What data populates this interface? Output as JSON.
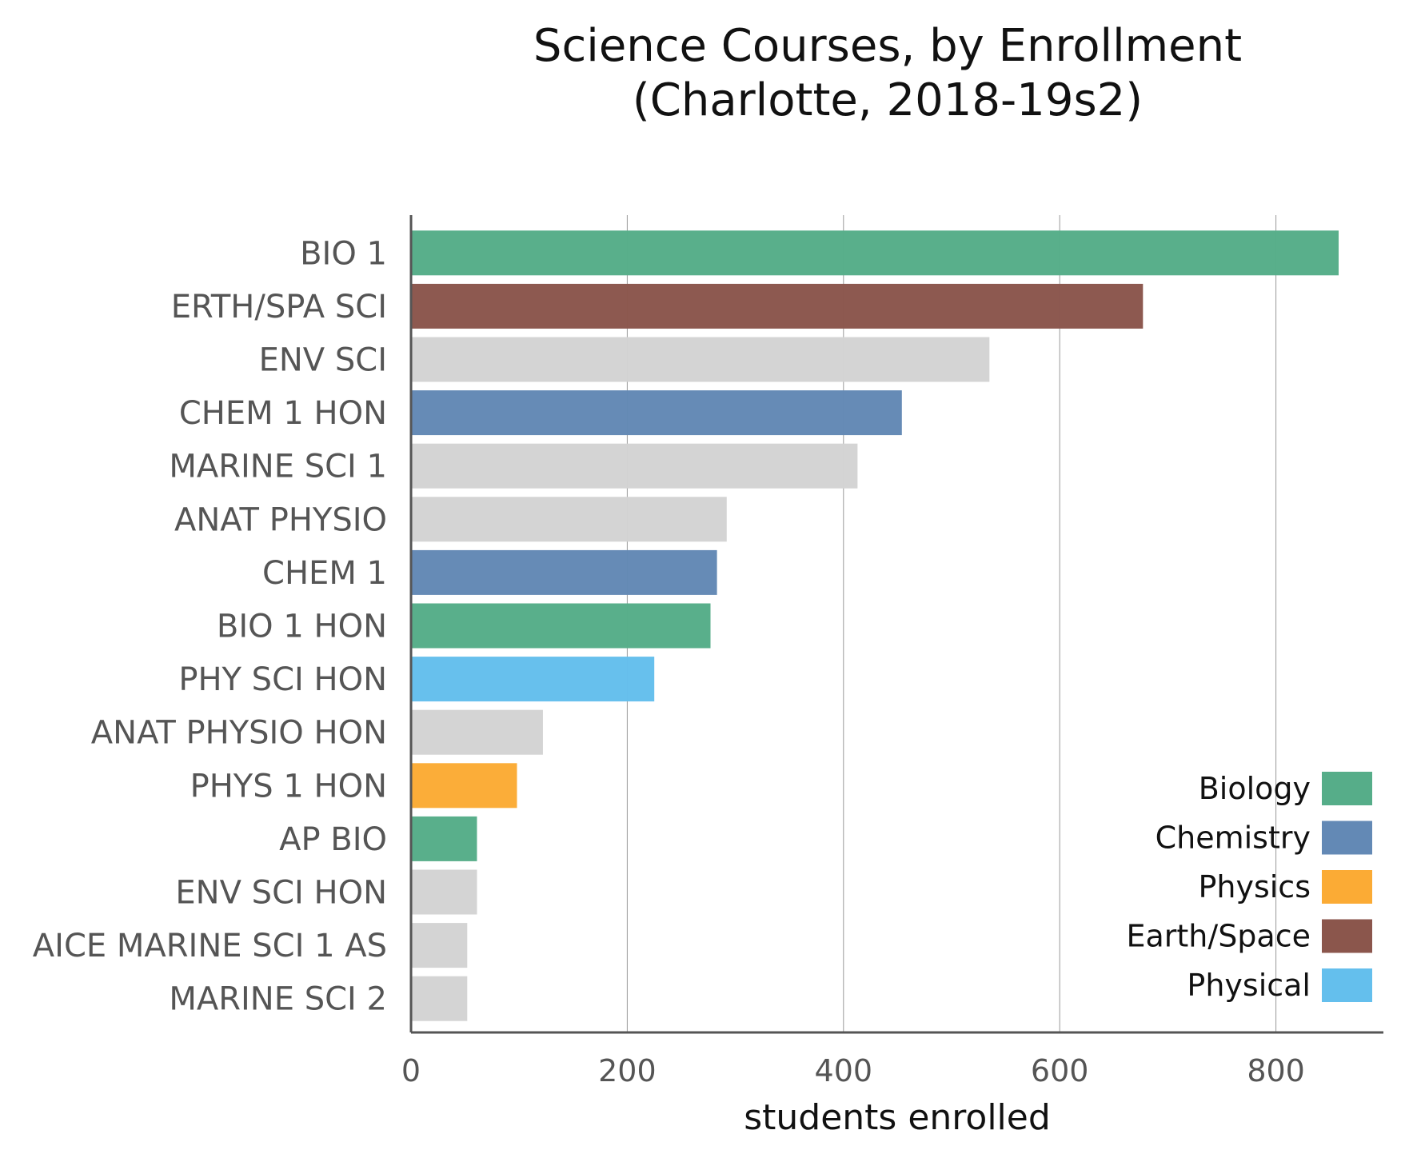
{
  "chart_data": {
    "type": "bar",
    "orientation": "horizontal",
    "title": "Science Courses, by Enrollment",
    "subtitle": "(Charlotte, 2018-19s2)",
    "xlabel": "students enrolled",
    "ylabel": "",
    "xlim": [
      0,
      900
    ],
    "xticks": [
      0,
      200,
      400,
      600,
      800
    ],
    "grid": "vertical",
    "categories": [
      "BIO 1",
      "ERTH/SPA SCI",
      "ENV SCI",
      "CHEM 1 HON",
      "MARINE SCI 1",
      "ANAT PHYSIO",
      "CHEM 1",
      "BIO 1 HON",
      "PHY SCI HON",
      "ANAT PHYSIO HON",
      "PHYS 1 HON",
      "AP BIO",
      "ENV SCI HON",
      "AICE MARINE SCI 1 AS",
      "MARINE SCI 2"
    ],
    "values": [
      858,
      677,
      535,
      454,
      413,
      292,
      283,
      277,
      225,
      122,
      98,
      61,
      61,
      52,
      52
    ],
    "groups": [
      "Biology",
      "Earth/Space",
      "Other",
      "Chemistry",
      "Other",
      "Other",
      "Chemistry",
      "Biology",
      "Physical",
      "Other",
      "Physics",
      "Biology",
      "Other",
      "Other",
      "Other"
    ],
    "colors": {
      "Biology": "#56ad89",
      "Chemistry": "#6389b5",
      "Physics": "#fbab35",
      "Earth/Space": "#8b564c",
      "Physical": "#64bfed",
      "Other": "#d3d3d3"
    },
    "legend": {
      "placement": "bottom-right",
      "entries": [
        "Biology",
        "Chemistry",
        "Physics",
        "Earth/Space",
        "Physical"
      ]
    }
  }
}
